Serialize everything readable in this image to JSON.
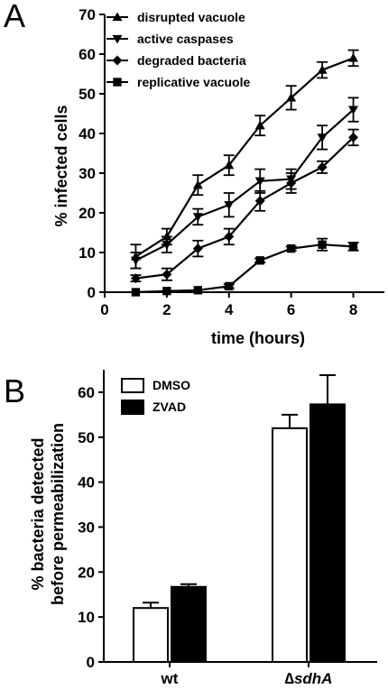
{
  "chart_data": [
    {
      "panel": "A",
      "type": "line",
      "xlabel": "time (hours)",
      "ylabel": "% infected cells",
      "xlim": [
        0,
        9
      ],
      "ylim": [
        0,
        70
      ],
      "x_ticks": [
        "0",
        "2",
        "4",
        "6",
        "8"
      ],
      "y_ticks": [
        "0",
        "10",
        "20",
        "30",
        "40",
        "50",
        "60",
        "70"
      ],
      "legend_placement": "top-left",
      "x": [
        1,
        2,
        3,
        4,
        5,
        6,
        7,
        8
      ],
      "series": [
        {
          "name": "disrupted vacuole",
          "marker": "triangle-up",
          "values": [
            9,
            14,
            27,
            32,
            42,
            49,
            56,
            59
          ],
          "errors": [
            3,
            2,
            2.5,
            2.5,
            2.5,
            3,
            2,
            2
          ]
        },
        {
          "name": "active caspases",
          "marker": "triangle-down",
          "values": [
            8,
            12,
            19,
            22,
            28,
            28.5,
            39,
            46
          ],
          "errors": [
            2,
            2,
            2,
            3,
            3,
            2.5,
            3,
            3
          ]
        },
        {
          "name": "degraded bacteria",
          "marker": "diamond",
          "values": [
            3.5,
            4.5,
            11,
            14,
            23,
            27.5,
            31.5,
            39
          ],
          "errors": [
            0.8,
            1.5,
            2,
            2,
            2.5,
            2.5,
            1.5,
            2
          ]
        },
        {
          "name": "replicative vacuole",
          "marker": "square",
          "values": [
            0,
            0.3,
            0.5,
            1.5,
            8,
            11,
            12,
            11.5
          ],
          "errors": [
            0,
            0,
            0,
            0.5,
            0.5,
            0.5,
            1.5,
            1
          ]
        }
      ]
    },
    {
      "panel": "B",
      "type": "bar",
      "ylabel": "% bacteria detected before permeabilization",
      "ylabel_lines": [
        "% bacteria detected",
        "before permeabilization"
      ],
      "ylim": [
        0,
        65
      ],
      "y_ticks": [
        "0",
        "10",
        "20",
        "30",
        "40",
        "50",
        "60"
      ],
      "legend_placement": "top-left",
      "categories": [
        {
          "prefix": "",
          "name": "wt"
        },
        {
          "prefix": "∆",
          "name": "sdhA"
        }
      ],
      "series": [
        {
          "name": "DMSO",
          "color": "#ffffff",
          "values": [
            12,
            52
          ],
          "errors": [
            1.2,
            3
          ]
        },
        {
          "name": "ZVAD",
          "color": "#000000",
          "values": [
            16.7,
            57.3
          ],
          "errors": [
            0.6,
            6.5
          ]
        }
      ]
    }
  ]
}
